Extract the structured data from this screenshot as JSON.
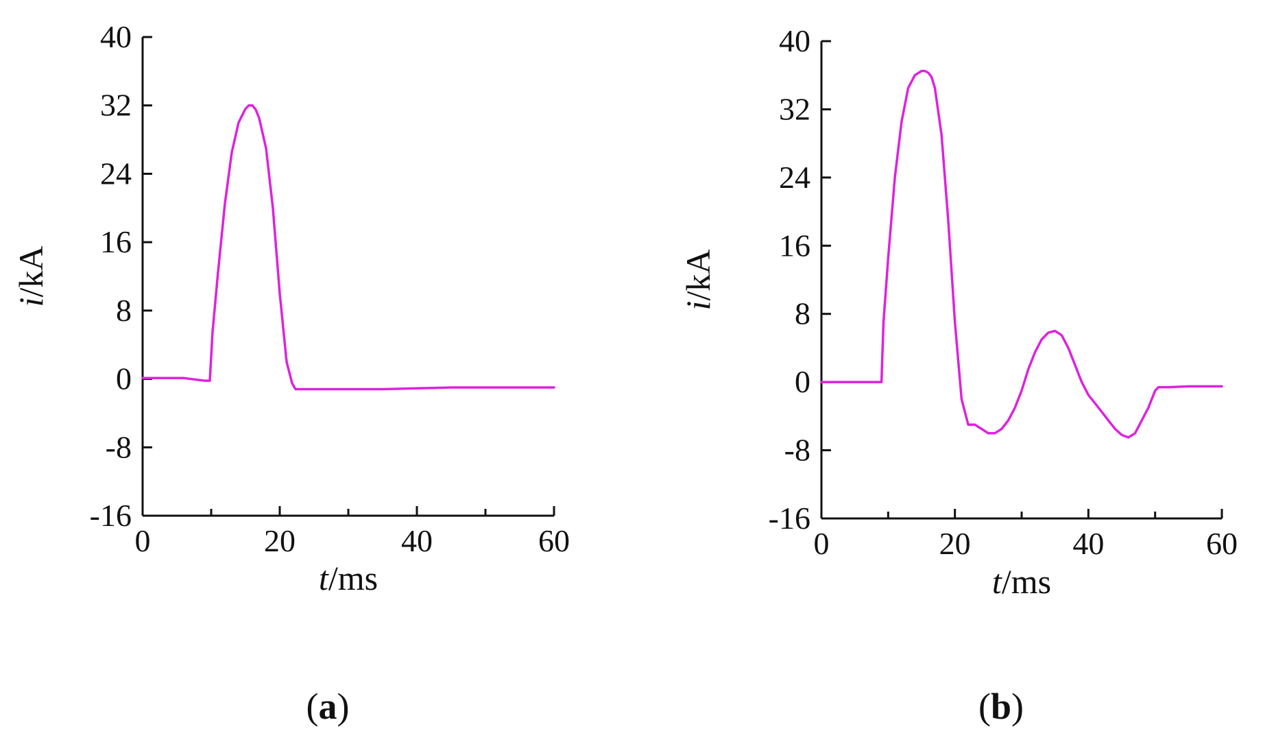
{
  "chart_data": [
    {
      "type": "line",
      "panel_label": "a",
      "xlabel": {
        "var": "t",
        "unit": "/ms"
      },
      "ylabel": {
        "var": "i",
        "unit": "/kA"
      },
      "xlim": [
        0,
        60
      ],
      "ylim": [
        -16,
        40
      ],
      "xticks": [
        "0",
        "20",
        "40",
        "60"
      ],
      "yticks": [
        "40",
        "32",
        "24",
        "16",
        "8",
        "0",
        "-8",
        "-16"
      ],
      "xtick_values": [
        0,
        20,
        40,
        60
      ],
      "ytick_values": [
        40,
        32,
        24,
        16,
        8,
        0,
        -8,
        -16
      ],
      "x_minor_tick_values": [
        10,
        30,
        50
      ],
      "grid": false,
      "line_color": "#dd22dd",
      "series": [
        {
          "x": [
            0,
            3,
            6,
            9,
            9.8,
            10.2,
            11,
            12,
            13,
            14,
            15,
            15.5,
            16,
            16.5,
            17,
            18,
            19,
            20,
            21,
            21.8,
            22.3,
            25,
            30,
            35,
            40,
            45,
            50,
            55,
            60
          ],
          "y": [
            0.1,
            0.1,
            0.1,
            -0.2,
            -0.2,
            5.5,
            12.5,
            20.5,
            26.5,
            30.0,
            31.6,
            32.0,
            32.0,
            31.5,
            30.5,
            27.0,
            20.0,
            10.0,
            2.0,
            -0.5,
            -1.2,
            -1.2,
            -1.2,
            -1.2,
            -1.1,
            -1.0,
            -1.0,
            -1.0,
            -1.0
          ]
        }
      ]
    },
    {
      "type": "line",
      "panel_label": "b",
      "xlabel": {
        "var": "t",
        "unit": "/ms"
      },
      "ylabel": {
        "var": "i",
        "unit": "/kA"
      },
      "xlim": [
        0,
        60
      ],
      "ylim": [
        -16,
        40
      ],
      "xticks": [
        "0",
        "20",
        "40",
        "60"
      ],
      "yticks": [
        "40",
        "32",
        "24",
        "16",
        "8",
        "0",
        "-8",
        "-16"
      ],
      "xtick_values": [
        0,
        20,
        40,
        60
      ],
      "ytick_values": [
        40,
        32,
        24,
        16,
        8,
        0,
        -8,
        -16
      ],
      "x_minor_tick_values": [
        10,
        30,
        50
      ],
      "grid": false,
      "line_color": "#dd22dd",
      "series": [
        {
          "x": [
            0,
            5,
            9.0,
            9.3,
            10,
            11,
            12,
            13,
            14,
            15,
            15.5,
            16,
            16.5,
            17,
            18,
            19,
            20,
            21,
            22,
            23,
            24,
            25,
            26,
            27,
            28,
            29,
            30,
            31,
            32,
            33,
            34,
            35,
            36,
            37,
            38,
            39,
            40,
            41,
            42,
            43,
            44,
            45,
            46,
            47,
            48,
            49,
            50,
            50.5,
            52,
            55,
            58,
            60
          ],
          "y": [
            0,
            0,
            0,
            7.0,
            14.5,
            24.0,
            30.5,
            34.5,
            36.0,
            36.5,
            36.5,
            36.3,
            35.8,
            34.5,
            29.0,
            19.0,
            7.0,
            -2.0,
            -5.0,
            -5.0,
            -5.5,
            -6.0,
            -6.0,
            -5.5,
            -4.5,
            -3.0,
            -1.0,
            1.5,
            3.5,
            5.0,
            5.8,
            6.0,
            5.5,
            4.0,
            2.0,
            0,
            -1.5,
            -2.5,
            -3.5,
            -4.5,
            -5.5,
            -6.2,
            -6.5,
            -6.0,
            -4.5,
            -3.0,
            -1.0,
            -0.6,
            -0.6,
            -0.5,
            -0.5,
            -0.5
          ]
        }
      ]
    }
  ]
}
